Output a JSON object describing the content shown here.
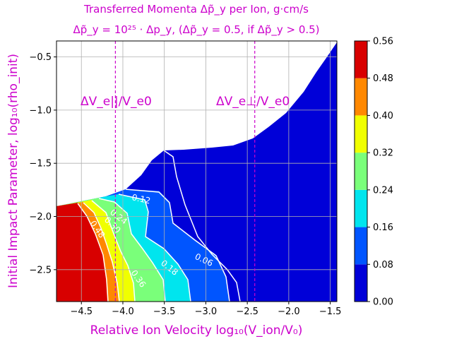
{
  "chart_data": {
    "type": "heatmap",
    "title_line1": "Transferred Momenta Δp̃_y per Ion, g·cm/s",
    "title_line2": "Δp̃_y = 10²⁵ · Δp_y, (Δp̃_y = 0.5, if Δp̃_y > 0.5)",
    "xlabel": "Relative Ion Velocity  log₁₀(V_ion/V₀)",
    "ylabel": "Initial Impact Parameter, log₁₀(rho_init)",
    "xlim": [
      -4.8,
      -1.42
    ],
    "ylim": [
      -2.8,
      -0.35
    ],
    "x_ticks": [
      -4.5,
      -4.0,
      -3.5,
      -3.0,
      -2.5,
      -2.0,
      -1.5
    ],
    "x_tick_labels": [
      "−4.5",
      "−4.0",
      "−3.5",
      "−3.0",
      "−2.5",
      "−2.0",
      "−1.5"
    ],
    "y_ticks": [
      -0.5,
      -1.0,
      -1.5,
      -2.0,
      -2.5
    ],
    "y_tick_labels": [
      "−0.5",
      "−1.0",
      "−1.5",
      "−2.0",
      "−2.5"
    ],
    "grid": true,
    "vertical_lines": [
      {
        "x": -4.09,
        "label": "ΔV_e||/V_e0",
        "color": "#cc00cc"
      },
      {
        "x": -2.41,
        "label": "ΔV_e⊥/V_e0",
        "color": "#cc00cc"
      }
    ],
    "colorbar": {
      "levels": [
        0.0,
        0.08,
        0.16,
        0.24,
        0.32,
        0.4,
        0.48,
        0.56
      ],
      "tick_labels": [
        "0.00",
        "0.08",
        "0.16",
        "0.24",
        "0.32",
        "0.40",
        "0.48",
        "0.56"
      ],
      "colors": [
        "#0000d8",
        "#0055ff",
        "#00e5ee",
        "#7aff7a",
        "#f0ff00",
        "#ff8800",
        "#d80000"
      ]
    },
    "contour_labels": [
      "0.06",
      "0.12",
      "0.18",
      "0.24",
      "0.30",
      "0.36",
      "0.48"
    ]
  }
}
